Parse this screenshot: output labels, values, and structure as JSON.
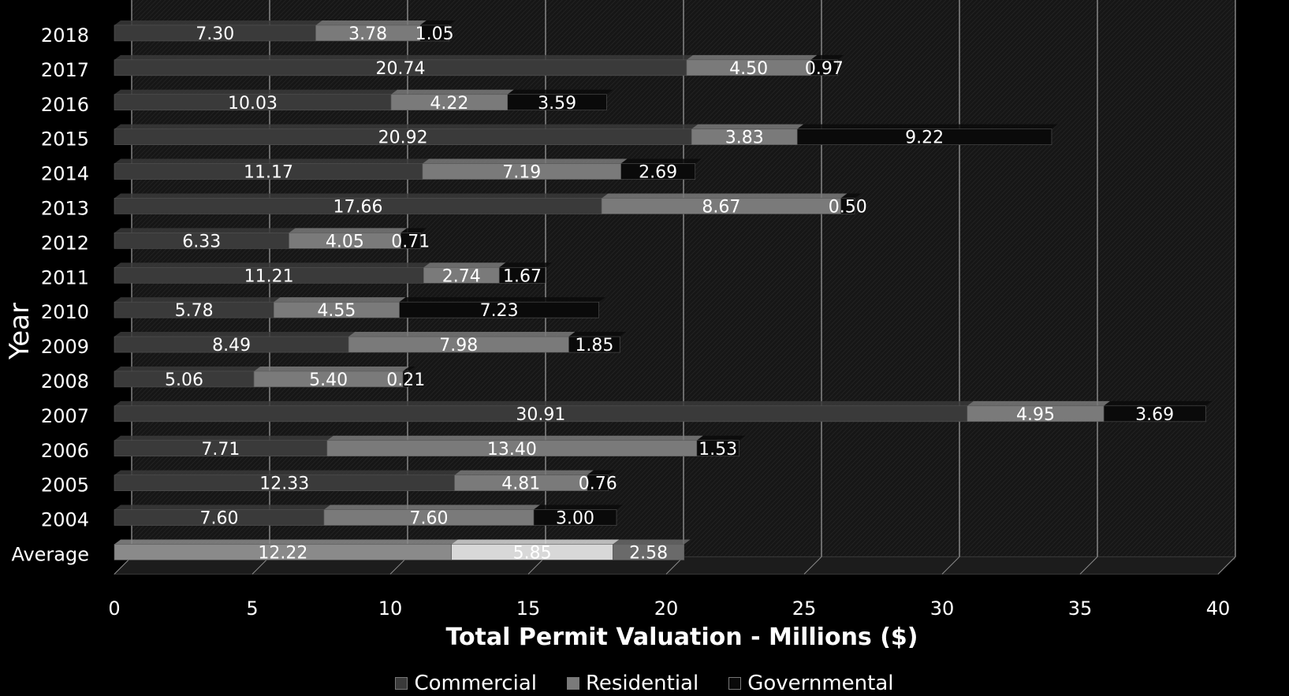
{
  "chart_data": {
    "type": "bar",
    "orientation": "horizontal",
    "stacked": true,
    "xlabel": "Total Permit Valuation  - Millions ($)",
    "ylabel": "Year",
    "xlim": [
      0,
      40
    ],
    "xticks": [
      "0",
      "5",
      "10",
      "15",
      "20",
      "25",
      "30",
      "35",
      "40"
    ],
    "grid": true,
    "legend_position": "bottom",
    "categories": [
      "2018",
      "2017",
      "2016",
      "2015",
      "2014",
      "2013",
      "2012",
      "2011",
      "2010",
      "2009",
      "2008",
      "2007",
      "2006",
      "2005",
      "2004",
      "Average"
    ],
    "series": [
      {
        "name": "Commercial",
        "color": "#3a3a3a",
        "labels": [
          "7.30",
          "20.74",
          "10.03",
          "20.92",
          "11.17",
          "17.66",
          "6.33",
          "11.21",
          "5.78",
          "8.49",
          "5.06",
          "30.91",
          "7.71",
          "12.33",
          "7.60",
          "12.22"
        ],
        "values": [
          7.3,
          20.74,
          10.03,
          20.92,
          11.17,
          17.66,
          6.33,
          11.21,
          5.78,
          8.49,
          5.06,
          30.91,
          7.71,
          12.33,
          7.6,
          12.22
        ]
      },
      {
        "name": "Residential",
        "color": "#7a7a7a",
        "labels": [
          "3.78",
          "4.50",
          "4.22",
          "3.83",
          "7.19",
          "8.67",
          "4.05",
          "2.74",
          "4.55",
          "7.98",
          "5.40",
          "4.95",
          "13.40",
          "4.81",
          "7.60",
          "5.85"
        ],
        "values": [
          3.78,
          4.5,
          4.22,
          3.83,
          7.19,
          8.67,
          4.05,
          2.74,
          4.55,
          7.98,
          5.4,
          4.95,
          13.4,
          4.81,
          7.6,
          5.85
        ]
      },
      {
        "name": "Governmental",
        "color": "#0a0a0a",
        "labels": [
          "1.05",
          "0.97",
          "3.59",
          "9.22",
          "2.69",
          "0.50",
          "0.71",
          "1.67",
          "7.23",
          "1.85",
          "0.21",
          "3.69",
          "1.53",
          "0.76",
          "3.00",
          "2.58"
        ],
        "values": [
          1.05,
          0.97,
          3.59,
          9.22,
          2.69,
          0.5,
          0.71,
          1.67,
          7.23,
          1.85,
          0.21,
          3.69,
          1.53,
          0.76,
          3.0,
          2.58
        ]
      }
    ],
    "average_colors": [
      "#8a8a8a",
      "#d8d8d8",
      "#6a6a6a"
    ]
  }
}
